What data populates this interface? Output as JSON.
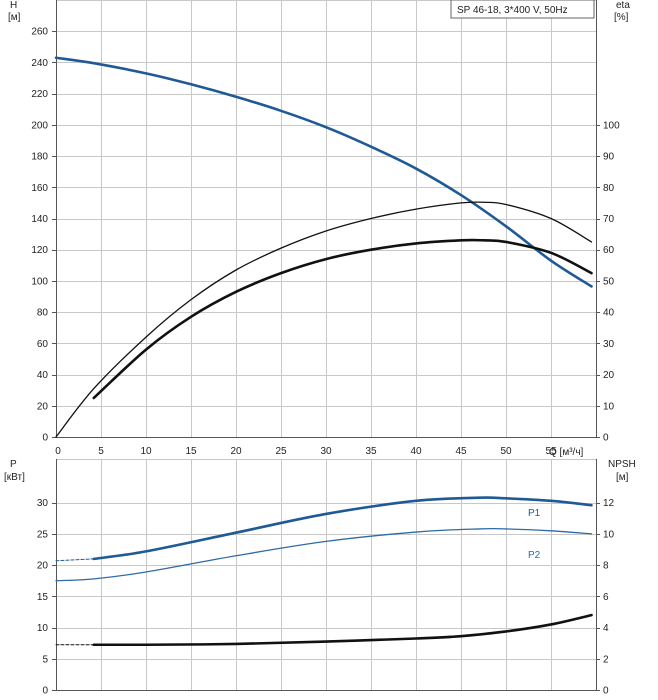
{
  "chart_data": [
    {
      "type": "line",
      "legend_box": "SP 46-18, 3*400 V, 50Hz",
      "xlabel": "Q [м³/ч]",
      "x_ticks": [
        "0",
        "5",
        "10",
        "15",
        "20",
        "25",
        "30",
        "35",
        "40",
        "45",
        "50",
        "55"
      ],
      "xlim": [
        0,
        60
      ],
      "left_axis": {
        "label_line1": "H",
        "label_line2": "[м]",
        "ylim": [
          0,
          280
        ],
        "ticks": [
          0,
          20,
          40,
          60,
          80,
          100,
          120,
          140,
          160,
          180,
          200,
          220,
          240,
          260
        ]
      },
      "right_axis": {
        "label_line1": "eta",
        "label_line2": "[%]",
        "ylim": [
          0,
          140
        ],
        "ticks": [
          0,
          10,
          20,
          30,
          40,
          50,
          60,
          70,
          80,
          90,
          100
        ]
      },
      "grid": true,
      "colors": {
        "head": "#1f5a96",
        "efficiency": "#111111",
        "grid": "#c8c8c8"
      },
      "series": [
        {
          "axis": "left",
          "color": "#1f5a96",
          "width": 2.6,
          "x": [
            0,
            4.2,
            10,
            15,
            20,
            25,
            30,
            35,
            40,
            45,
            50,
            55,
            59.5
          ],
          "y": [
            243,
            239.5,
            233,
            226,
            218,
            209,
            198.5,
            186,
            172,
            155,
            135,
            113,
            96.5
          ]
        },
        {
          "axis": "left",
          "color": "#1f5a96",
          "width": 1,
          "dash": "3,2",
          "x": [
            0,
            2,
            4.2
          ],
          "y": [
            243,
            241.7,
            239.5
          ]
        },
        {
          "axis": "right",
          "color": "#111111",
          "width": 1.3,
          "x": [
            0,
            4.2,
            10,
            15,
            20,
            25,
            30,
            35,
            40,
            45,
            47.5,
            50,
            55,
            59.5
          ],
          "y": [
            0,
            15.5,
            32,
            44,
            53.5,
            60.5,
            66,
            70,
            73,
            75,
            75.2,
            74.5,
            70,
            62.5
          ]
        },
        {
          "axis": "right",
          "color": "#111111",
          "width": 2.6,
          "x": [
            4.2,
            10,
            15,
            20,
            25,
            30,
            35,
            40,
            45,
            47.5,
            50,
            55,
            59.5
          ],
          "y": [
            12.5,
            28,
            38.5,
            46.5,
            52.5,
            57,
            60,
            62,
            63,
            63,
            62.5,
            59,
            52.5
          ]
        }
      ]
    },
    {
      "type": "line",
      "xlim": [
        0,
        60
      ],
      "left_axis": {
        "label_line1": "P",
        "label_line2": "[кВт]",
        "ylim": [
          0,
          37
        ],
        "ticks": [
          0,
          5,
          10,
          15,
          20,
          25,
          30
        ]
      },
      "right_axis": {
        "label_line1": "NPSH",
        "label_line2": "[м]",
        "ylim": [
          0,
          14.8
        ],
        "ticks": [
          0,
          2,
          4,
          6,
          8,
          10,
          12
        ]
      },
      "grid": true,
      "series": [
        {
          "name": "P1",
          "axis": "left",
          "color": "#1f5a96",
          "width": 2.6,
          "x": [
            4.2,
            10,
            20,
            30,
            40,
            47,
            50,
            55,
            59.5
          ],
          "y": [
            21,
            22.2,
            25.2,
            28.2,
            30.3,
            30.8,
            30.7,
            30.3,
            29.6
          ]
        },
        {
          "axis": "left",
          "color": "#1f5a96",
          "width": 1,
          "dash": "3,2",
          "x": [
            0,
            4.2
          ],
          "y": [
            20.7,
            21
          ]
        },
        {
          "name": "P2",
          "axis": "left",
          "color": "#2e6aa6",
          "width": 1.3,
          "x": [
            0,
            4.2,
            10,
            20,
            30,
            40,
            47,
            50,
            55,
            59.5
          ],
          "y": [
            17.5,
            17.8,
            18.9,
            21.5,
            23.8,
            25.3,
            25.8,
            25.8,
            25.5,
            25
          ]
        },
        {
          "axis": "right",
          "color": "#111111",
          "width": 2.6,
          "x": [
            4.2,
            10,
            20,
            30,
            40,
            45,
            50,
            55,
            59.5
          ],
          "y": [
            2.9,
            2.9,
            2.95,
            3.1,
            3.3,
            3.45,
            3.75,
            4.2,
            4.8
          ]
        },
        {
          "axis": "right",
          "color": "#111111",
          "width": 1,
          "dash": "3,2",
          "x": [
            0,
            4.2
          ],
          "y": [
            2.9,
            2.9
          ]
        }
      ]
    }
  ]
}
